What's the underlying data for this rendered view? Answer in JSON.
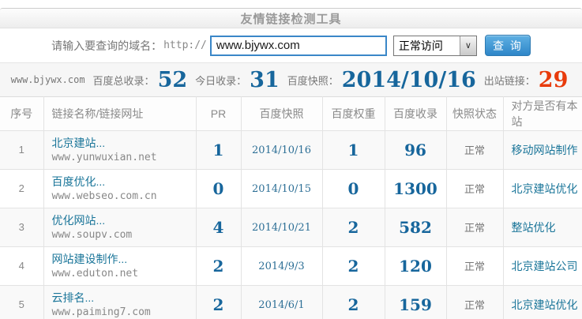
{
  "header": {
    "title": "友情链接检测工具"
  },
  "query": {
    "label": "请输入要查询的域名：",
    "protocol": "http://",
    "input_value": "www.bjywx.com",
    "select_value": "正常访问",
    "select_arrow_icon": "∨",
    "button_label": "查 询"
  },
  "stats": {
    "domain": "www.bjywx.com",
    "items": [
      {
        "label": "百度总收录：",
        "value": "52",
        "color": "#17669c"
      },
      {
        "label": "今日收录：",
        "value": "31",
        "color": "#17669c"
      },
      {
        "label": "百度快照：",
        "value": "2014/10/16",
        "color": "#17669c"
      },
      {
        "label": "出站链接：",
        "value": "29",
        "color": "#e83b0c"
      }
    ]
  },
  "table": {
    "columns": [
      "序号",
      "链接名称/链接网址",
      "PR",
      "百度快照",
      "百度权重",
      "百度收录",
      "快照状态",
      "对方是否有本站"
    ],
    "rows": [
      {
        "index": "1",
        "name": "北京建站...",
        "url": "www.yunwuxian.net",
        "pr": "1",
        "snapshot": "2014/10/16",
        "weight": "1",
        "included": "96",
        "status": "正常",
        "backlink": "移动网站制作"
      },
      {
        "index": "2",
        "name": "百度优化...",
        "url": "www.webseo.com.cn",
        "pr": "0",
        "snapshot": "2014/10/15",
        "weight": "0",
        "included": "1300",
        "status": "正常",
        "backlink": "北京建站优化"
      },
      {
        "index": "3",
        "name": "优化网站...",
        "url": "www.soupv.com",
        "pr": "4",
        "snapshot": "2014/10/21",
        "weight": "2",
        "included": "582",
        "status": "正常",
        "backlink": "整站优化"
      },
      {
        "index": "4",
        "name": "网站建设制作...",
        "url": "www.eduton.net",
        "pr": "2",
        "snapshot": "2014/9/3",
        "weight": "2",
        "included": "120",
        "status": "正常",
        "backlink": "北京建站公司"
      },
      {
        "index": "5",
        "name": "云排名...",
        "url": "www.paiming7.com",
        "pr": "2",
        "snapshot": "2014/6/1",
        "weight": "2",
        "included": "159",
        "status": "正常",
        "backlink": "北京建站优化"
      }
    ]
  },
  "colors": {
    "accent_blue": "#17669c",
    "link_blue": "#1a7599",
    "alert_red": "#e83b0c",
    "button_blue": "#2e86c8"
  }
}
